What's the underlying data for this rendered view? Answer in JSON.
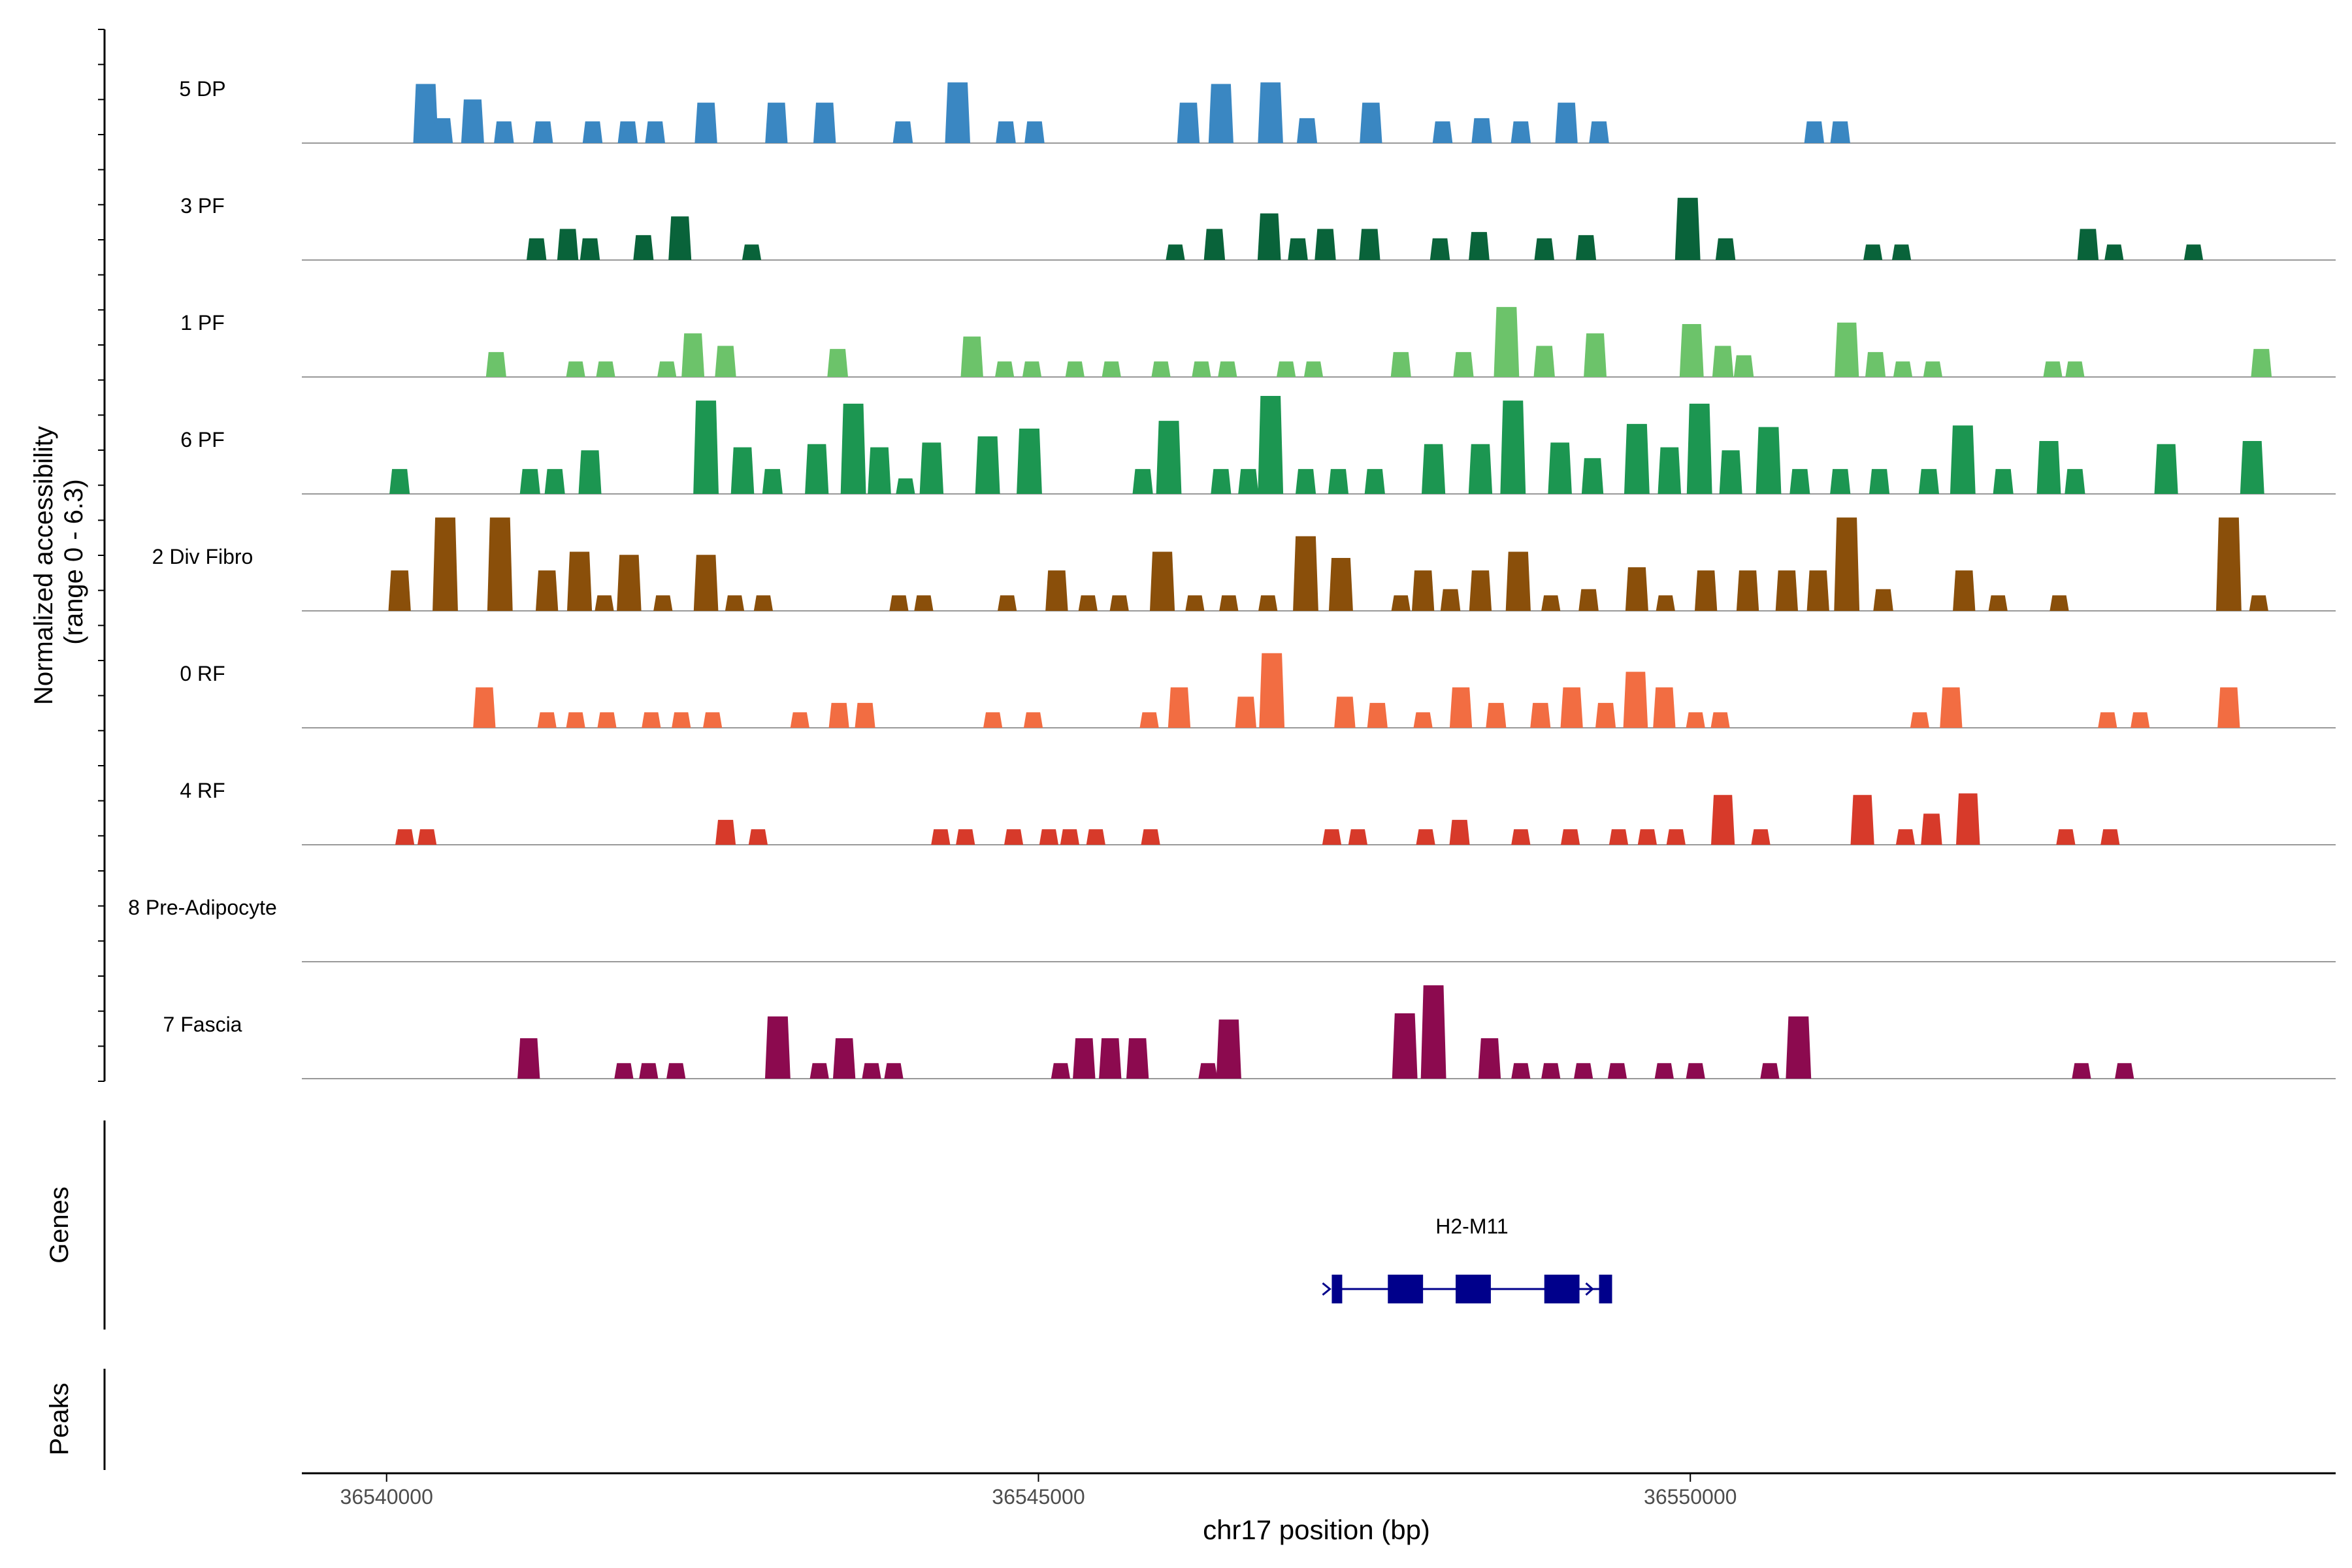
{
  "chart_data": {
    "type": "area",
    "title": "",
    "chromosome": "chr17",
    "xlabel": "chr17 position (bp)",
    "ylabel_line1": "Normalized accessibility",
    "ylabel_line2": "(range 0 - 6.3)",
    "ylim": [
      0,
      6.3
    ],
    "xlim": [
      36539350,
      36554950
    ],
    "x_ticks": [
      36540000,
      36545000,
      36550000
    ],
    "x_tick_labels": [
      "36540000",
      "36545000",
      "36550000"
    ],
    "track_labels": {
      "genes": "Genes",
      "peaks": "Peaks"
    },
    "series": [
      {
        "name": "5 DP",
        "color": "#3a87c2",
        "peaks": [
          [
            36540300,
            3.8
          ],
          [
            36540430,
            1.6
          ],
          [
            36540660,
            2.8
          ],
          [
            36540900,
            1.4
          ],
          [
            36541200,
            1.4
          ],
          [
            36541580,
            1.4
          ],
          [
            36541850,
            1.4
          ],
          [
            36542060,
            1.4
          ],
          [
            36542450,
            2.6
          ],
          [
            36542990,
            2.6
          ],
          [
            36543360,
            2.6
          ],
          [
            36543960,
            1.4
          ],
          [
            36544380,
            3.9
          ],
          [
            36544750,
            1.4
          ],
          [
            36544970,
            1.4
          ],
          [
            36546150,
            2.6
          ],
          [
            36546400,
            3.8
          ],
          [
            36546780,
            3.9
          ],
          [
            36547060,
            1.6
          ],
          [
            36547550,
            2.6
          ],
          [
            36548100,
            1.4
          ],
          [
            36548400,
            1.6
          ],
          [
            36548700,
            1.4
          ],
          [
            36549050,
            2.6
          ],
          [
            36549300,
            1.4
          ],
          [
            36550950,
            1.4
          ],
          [
            36551150,
            1.4
          ]
        ]
      },
      {
        "name": "3 PF",
        "color": "#09633a",
        "peaks": [
          [
            36541150,
            1.4
          ],
          [
            36541390,
            2.0
          ],
          [
            36541560,
            1.4
          ],
          [
            36541970,
            1.6
          ],
          [
            36542250,
            2.8
          ],
          [
            36542800,
            1.0
          ],
          [
            36546050,
            1.0
          ],
          [
            36546350,
            2.0
          ],
          [
            36546770,
            3.0
          ],
          [
            36546990,
            1.4
          ],
          [
            36547200,
            2.0
          ],
          [
            36547540,
            2.0
          ],
          [
            36548080,
            1.4
          ],
          [
            36548380,
            1.8
          ],
          [
            36548880,
            1.4
          ],
          [
            36549200,
            1.6
          ],
          [
            36549980,
            4.0
          ],
          [
            36550270,
            1.4
          ],
          [
            36551400,
            1.0
          ],
          [
            36551620,
            1.0
          ],
          [
            36553050,
            2.0
          ],
          [
            36553250,
            1.0
          ],
          [
            36553860,
            1.0
          ]
        ]
      },
      {
        "name": "1 PF",
        "color": "#6cc36a",
        "peaks": [
          [
            36540840,
            1.6
          ],
          [
            36541450,
            1.0
          ],
          [
            36541680,
            1.0
          ],
          [
            36542150,
            1.0
          ],
          [
            36542350,
            2.8
          ],
          [
            36542600,
            2.0
          ],
          [
            36543460,
            1.8
          ],
          [
            36544490,
            2.6
          ],
          [
            36544740,
            1.0
          ],
          [
            36544950,
            1.0
          ],
          [
            36545280,
            1.0
          ],
          [
            36545560,
            1.0
          ],
          [
            36545940,
            1.0
          ],
          [
            36546250,
            1.0
          ],
          [
            36546450,
            1.0
          ],
          [
            36546900,
            1.0
          ],
          [
            36547110,
            1.0
          ],
          [
            36547780,
            1.6
          ],
          [
            36548260,
            1.6
          ],
          [
            36548590,
            4.5
          ],
          [
            36548880,
            2.0
          ],
          [
            36549270,
            2.8
          ],
          [
            36550010,
            3.4
          ],
          [
            36550250,
            2.0
          ],
          [
            36550410,
            1.4
          ],
          [
            36551200,
            3.5
          ],
          [
            36551420,
            1.6
          ],
          [
            36551630,
            1.0
          ],
          [
            36551860,
            1.0
          ],
          [
            36552780,
            1.0
          ],
          [
            36552950,
            1.0
          ],
          [
            36554380,
            1.8
          ]
        ]
      },
      {
        "name": "6 PF",
        "color": "#1c9651",
        "peaks": [
          [
            36540100,
            1.6
          ],
          [
            36541100,
            1.6
          ],
          [
            36541290,
            1.6
          ],
          [
            36541560,
            2.8
          ],
          [
            36542450,
            6.0
          ],
          [
            36542730,
            3.0
          ],
          [
            36542960,
            1.6
          ],
          [
            36543300,
            3.2
          ],
          [
            36543580,
            5.8
          ],
          [
            36543780,
            3.0
          ],
          [
            36543980,
            1.0
          ],
          [
            36544180,
            3.3
          ],
          [
            36544610,
            3.7
          ],
          [
            36544930,
            4.2
          ],
          [
            36545800,
            1.6
          ],
          [
            36546000,
            4.7
          ],
          [
            36546780,
            6.3
          ],
          [
            36546400,
            1.6
          ],
          [
            36546610,
            1.6
          ],
          [
            36547050,
            1.6
          ],
          [
            36547300,
            1.6
          ],
          [
            36547580,
            1.6
          ],
          [
            36548030,
            3.2
          ],
          [
            36548390,
            3.2
          ],
          [
            36548640,
            6.0
          ],
          [
            36549000,
            3.3
          ],
          [
            36549250,
            2.3
          ],
          [
            36549590,
            4.5
          ],
          [
            36549840,
            3.0
          ],
          [
            36550070,
            5.8
          ],
          [
            36550310,
            2.8
          ],
          [
            36550600,
            4.3
          ],
          [
            36550840,
            1.6
          ],
          [
            36551150,
            1.6
          ],
          [
            36551450,
            1.6
          ],
          [
            36551830,
            1.6
          ],
          [
            36552090,
            4.4
          ],
          [
            36552400,
            1.6
          ],
          [
            36552750,
            3.4
          ],
          [
            36552950,
            1.6
          ],
          [
            36553650,
            3.2
          ],
          [
            36554310,
            3.4
          ]
        ]
      },
      {
        "name": "2 Div Fibro",
        "color": "#8a4f0a",
        "peaks": [
          [
            36540100,
            2.6
          ],
          [
            36540450,
            6.0
          ],
          [
            36540870,
            6.0
          ],
          [
            36541230,
            2.6
          ],
          [
            36541480,
            3.8
          ],
          [
            36541670,
            1.0
          ],
          [
            36541860,
            3.6
          ],
          [
            36542120,
            1.0
          ],
          [
            36542450,
            3.6
          ],
          [
            36542670,
            1.0
          ],
          [
            36542890,
            1.0
          ],
          [
            36543930,
            1.0
          ],
          [
            36544120,
            1.0
          ],
          [
            36544760,
            1.0
          ],
          [
            36545140,
            2.6
          ],
          [
            36545380,
            1.0
          ],
          [
            36545620,
            1.0
          ],
          [
            36545950,
            3.8
          ],
          [
            36546200,
            1.0
          ],
          [
            36546460,
            1.0
          ],
          [
            36546760,
            1.0
          ],
          [
            36547050,
            4.8
          ],
          [
            36547320,
            3.4
          ],
          [
            36547780,
            1.0
          ],
          [
            36547950,
            2.6
          ],
          [
            36548160,
            1.4
          ],
          [
            36548390,
            2.6
          ],
          [
            36548680,
            3.8
          ],
          [
            36548930,
            1.0
          ],
          [
            36549220,
            1.4
          ],
          [
            36549590,
            2.8
          ],
          [
            36549810,
            1.0
          ],
          [
            36550120,
            2.6
          ],
          [
            36550440,
            2.6
          ],
          [
            36550740,
            2.6
          ],
          [
            36550980,
            2.6
          ],
          [
            36551200,
            6.0
          ],
          [
            36551480,
            1.4
          ],
          [
            36552100,
            2.6
          ],
          [
            36552360,
            1.0
          ],
          [
            36552830,
            1.0
          ],
          [
            36554130,
            6.0
          ],
          [
            36554360,
            1.0
          ]
        ]
      },
      {
        "name": "0 RF",
        "color": "#f26d42",
        "peaks": [
          [
            36540750,
            2.6
          ],
          [
            36541230,
            1.0
          ],
          [
            36541450,
            1.0
          ],
          [
            36541690,
            1.0
          ],
          [
            36542030,
            1.0
          ],
          [
            36542260,
            1.0
          ],
          [
            36542500,
            1.0
          ],
          [
            36543170,
            1.0
          ],
          [
            36543470,
            1.6
          ],
          [
            36543670,
            1.6
          ],
          [
            36544650,
            1.0
          ],
          [
            36544960,
            1.0
          ],
          [
            36545850,
            1.0
          ],
          [
            36546080,
            2.6
          ],
          [
            36546590,
            2.0
          ],
          [
            36546790,
            4.8
          ],
          [
            36547350,
            2.0
          ],
          [
            36547600,
            1.6
          ],
          [
            36547950,
            1.0
          ],
          [
            36548240,
            2.6
          ],
          [
            36548510,
            1.6
          ],
          [
            36548850,
            1.6
          ],
          [
            36549090,
            2.6
          ],
          [
            36549350,
            1.6
          ],
          [
            36549580,
            3.6
          ],
          [
            36549800,
            2.6
          ],
          [
            36550040,
            1.0
          ],
          [
            36550230,
            1.0
          ],
          [
            36551760,
            1.0
          ],
          [
            36552000,
            2.6
          ],
          [
            36553200,
            1.0
          ],
          [
            36553450,
            1.0
          ],
          [
            36554130,
            2.6
          ]
        ]
      },
      {
        "name": "4 RF",
        "color": "#d73a2a",
        "peaks": [
          [
            36540140,
            1.0
          ],
          [
            36540310,
            1.0
          ],
          [
            36542600,
            1.6
          ],
          [
            36542850,
            1.0
          ],
          [
            36544250,
            1.0
          ],
          [
            36544440,
            1.0
          ],
          [
            36544810,
            1.0
          ],
          [
            36545080,
            1.0
          ],
          [
            36545240,
            1.0
          ],
          [
            36545440,
            1.0
          ],
          [
            36545860,
            1.0
          ],
          [
            36547250,
            1.0
          ],
          [
            36547450,
            1.0
          ],
          [
            36547970,
            1.0
          ],
          [
            36548230,
            1.6
          ],
          [
            36548700,
            1.0
          ],
          [
            36549080,
            1.0
          ],
          [
            36549450,
            1.0
          ],
          [
            36549670,
            1.0
          ],
          [
            36549890,
            1.0
          ],
          [
            36550250,
            3.2
          ],
          [
            36550540,
            1.0
          ],
          [
            36551320,
            3.2
          ],
          [
            36551650,
            1.0
          ],
          [
            36551850,
            2.0
          ],
          [
            36552130,
            3.3
          ],
          [
            36552880,
            1.0
          ],
          [
            36553220,
            1.0
          ]
        ]
      },
      {
        "name": "8 Pre-Adipocyte",
        "color": "#7a4aa0",
        "peaks": []
      },
      {
        "name": "7 Fascia",
        "color": "#8c0a4f",
        "peaks": [
          [
            36541090,
            2.6
          ],
          [
            36541820,
            1.0
          ],
          [
            36542010,
            1.0
          ],
          [
            36542220,
            1.0
          ],
          [
            36543000,
            4.0
          ],
          [
            36543320,
            1.0
          ],
          [
            36543510,
            2.6
          ],
          [
            36543720,
            1.0
          ],
          [
            36543890,
            1.0
          ],
          [
            36545170,
            1.0
          ],
          [
            36545350,
            2.6
          ],
          [
            36545550,
            2.6
          ],
          [
            36545760,
            2.6
          ],
          [
            36546300,
            1.0
          ],
          [
            36546460,
            3.8
          ],
          [
            36547810,
            4.2
          ],
          [
            36548030,
            6.0
          ],
          [
            36548460,
            2.6
          ],
          [
            36548700,
            1.0
          ],
          [
            36548930,
            1.0
          ],
          [
            36549180,
            1.0
          ],
          [
            36549440,
            1.0
          ],
          [
            36549800,
            1.0
          ],
          [
            36550040,
            1.0
          ],
          [
            36550610,
            1.0
          ],
          [
            36550830,
            4.0
          ],
          [
            36553000,
            1.0
          ],
          [
            36553330,
            1.0
          ]
        ]
      }
    ],
    "genes": [
      {
        "name": "H2-M11",
        "start": 36547250,
        "end": 36549400,
        "color": "#00008b",
        "exons": [
          [
            36547250,
            36547330
          ],
          [
            36547680,
            36547950
          ],
          [
            36548200,
            36548470
          ],
          [
            36548880,
            36549150
          ],
          [
            36549300,
            36549400
          ]
        ]
      }
    ],
    "peaks_track": []
  }
}
